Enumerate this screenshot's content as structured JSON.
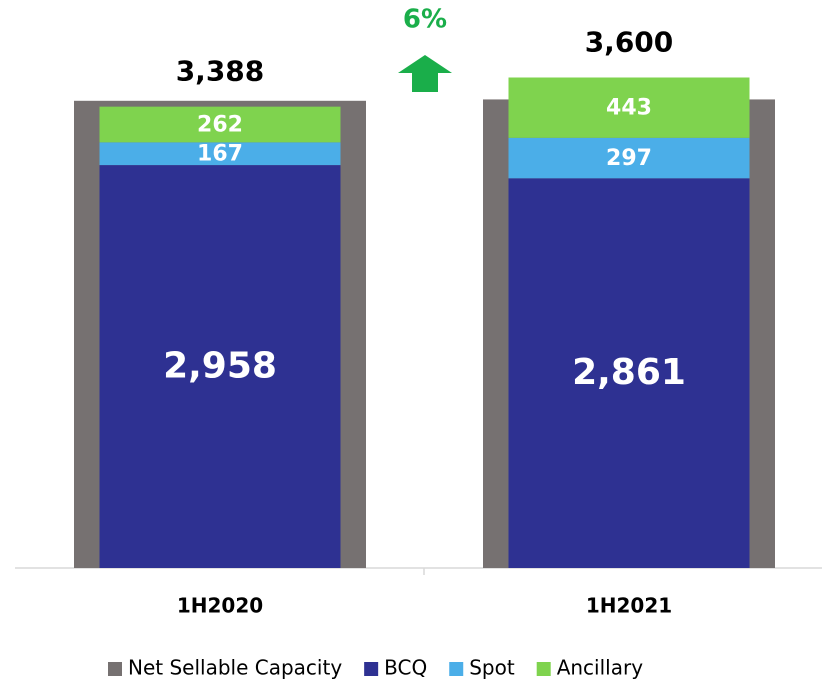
{
  "chart_data": {
    "type": "stacked_bar",
    "categories": [
      "1H2020",
      "1H2021"
    ],
    "background_series": {
      "name": "Net Sellable Capacity",
      "color": "#767171",
      "values": [
        3430,
        3440
      ]
    },
    "series": [
      {
        "name": "BCQ",
        "color": "#2e3192",
        "values": [
          2958,
          2861
        ],
        "value_labels": [
          "2,958",
          "2,861"
        ]
      },
      {
        "name": "Spot",
        "color": "#4baee8",
        "values": [
          167,
          297
        ]
      },
      {
        "name": "Ancillary",
        "color": "#7fd34e",
        "values": [
          262,
          443
        ]
      }
    ],
    "totals": {
      "values": [
        3388,
        3600
      ],
      "value_labels": [
        "3,388",
        "3,600"
      ]
    },
    "annotation": {
      "text": "6%",
      "color": "#1aae4a"
    },
    "ylim": [
      0,
      4170
    ]
  }
}
